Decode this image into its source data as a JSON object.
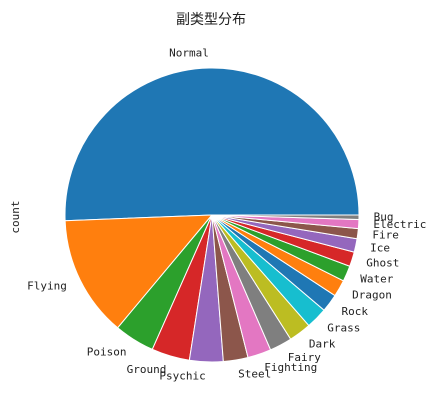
{
  "chart_data": {
    "type": "pie",
    "title": "副类型分布",
    "ylabel": "count",
    "legend": "none",
    "slices": [
      {
        "label": "Normal",
        "value": 411,
        "color": "#1f77b4"
      },
      {
        "label": "Flying",
        "value": 108,
        "color": "#ff7f0e"
      },
      {
        "label": "Poison",
        "value": 36,
        "color": "#2ca02c"
      },
      {
        "label": "Ground",
        "value": 34,
        "color": "#d62728"
      },
      {
        "label": "Psychic",
        "value": 30,
        "color": "#9467bd"
      },
      {
        "label": "Steel",
        "value": 22,
        "color": "#8c564b"
      },
      {
        "label": "Fighting",
        "value": 21,
        "color": "#e377c2"
      },
      {
        "label": "Fairy",
        "value": 20,
        "color": "#7f7f7f"
      },
      {
        "label": "Dark",
        "value": 20,
        "color": "#bcbd22"
      },
      {
        "label": "Grass",
        "value": 19,
        "color": "#17becf"
      },
      {
        "label": "Rock",
        "value": 16,
        "color": "#1f77b4"
      },
      {
        "label": "Dragon",
        "value": 15,
        "color": "#ff7f0e"
      },
      {
        "label": "Water",
        "value": 14,
        "color": "#2ca02c"
      },
      {
        "label": "Ghost",
        "value": 13,
        "color": "#d62728"
      },
      {
        "label": "Ice",
        "value": 12,
        "color": "#9467bd"
      },
      {
        "label": "Fire",
        "value": 9,
        "color": "#8c564b"
      },
      {
        "label": "Electric",
        "value": 8,
        "color": "#e377c2"
      },
      {
        "label": "Bug",
        "value": 4,
        "color": "#7f7f7f"
      }
    ]
  }
}
